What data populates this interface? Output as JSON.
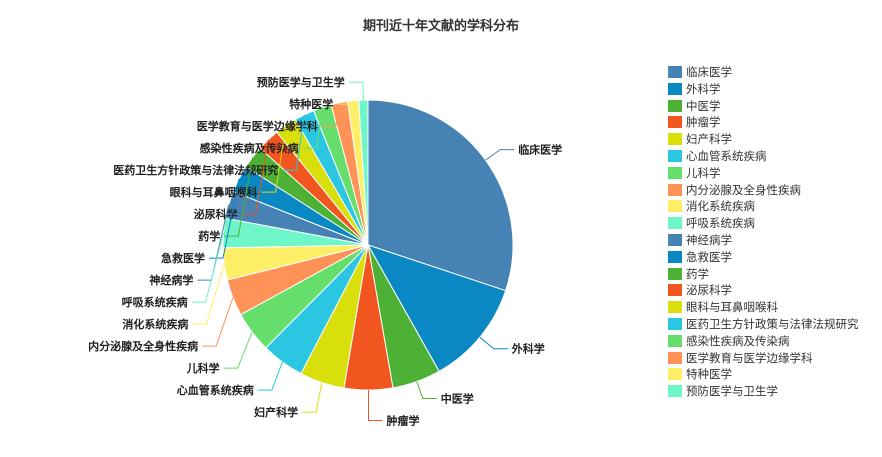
{
  "chart_data": {
    "type": "pie",
    "title": "期刊近十年文献的学科分布",
    "legend_position": "right",
    "slices": [
      {
        "name": "临床医学",
        "value": 29.5,
        "color": "#4682B4"
      },
      {
        "name": "外科学",
        "value": 11.5,
        "color": "#0A88C4"
      },
      {
        "name": "中医学",
        "value": 5.3,
        "color": "#4DB135"
      },
      {
        "name": "肿瘤学",
        "value": 5.3,
        "color": "#F0561E"
      },
      {
        "name": "妇产科学",
        "value": 4.9,
        "color": "#D9DF0B"
      },
      {
        "name": "心血管系统疾病",
        "value": 4.7,
        "color": "#2BC7E2"
      },
      {
        "name": "儿科学",
        "value": 4.5,
        "color": "#65DE6C"
      },
      {
        "name": "内分泌腺及全身性疾病",
        "value": 4.0,
        "color": "#FF9256"
      },
      {
        "name": "消化系统疾病",
        "value": 3.5,
        "color": "#FFEF66"
      },
      {
        "name": "呼吸系统疾病",
        "value": 3.2,
        "color": "#6EF5C8"
      },
      {
        "name": "神经病学",
        "value": 3.0,
        "color": "#4682B4"
      },
      {
        "name": "急救医学",
        "value": 3.0,
        "color": "#0A88C4"
      },
      {
        "name": "药学",
        "value": 2.5,
        "color": "#4DB135"
      },
      {
        "name": "泌尿科学",
        "value": 2.5,
        "color": "#F0561E"
      },
      {
        "name": "眼科与耳鼻咽喉科",
        "value": 2.4,
        "color": "#D9DF0B"
      },
      {
        "name": "医药卫生方针政策与法律法规研究",
        "value": 2.2,
        "color": "#2BC7E2"
      },
      {
        "name": "感染性疾病及传染病",
        "value": 2.0,
        "color": "#65DE6C"
      },
      {
        "name": "医学教育与医学边缘学科",
        "value": 1.8,
        "color": "#FF9256"
      },
      {
        "name": "特种医学",
        "value": 1.2,
        "color": "#FFEF66"
      },
      {
        "name": "预防医学与卫生学",
        "value": 1.0,
        "color": "#6EF5C8"
      }
    ]
  }
}
